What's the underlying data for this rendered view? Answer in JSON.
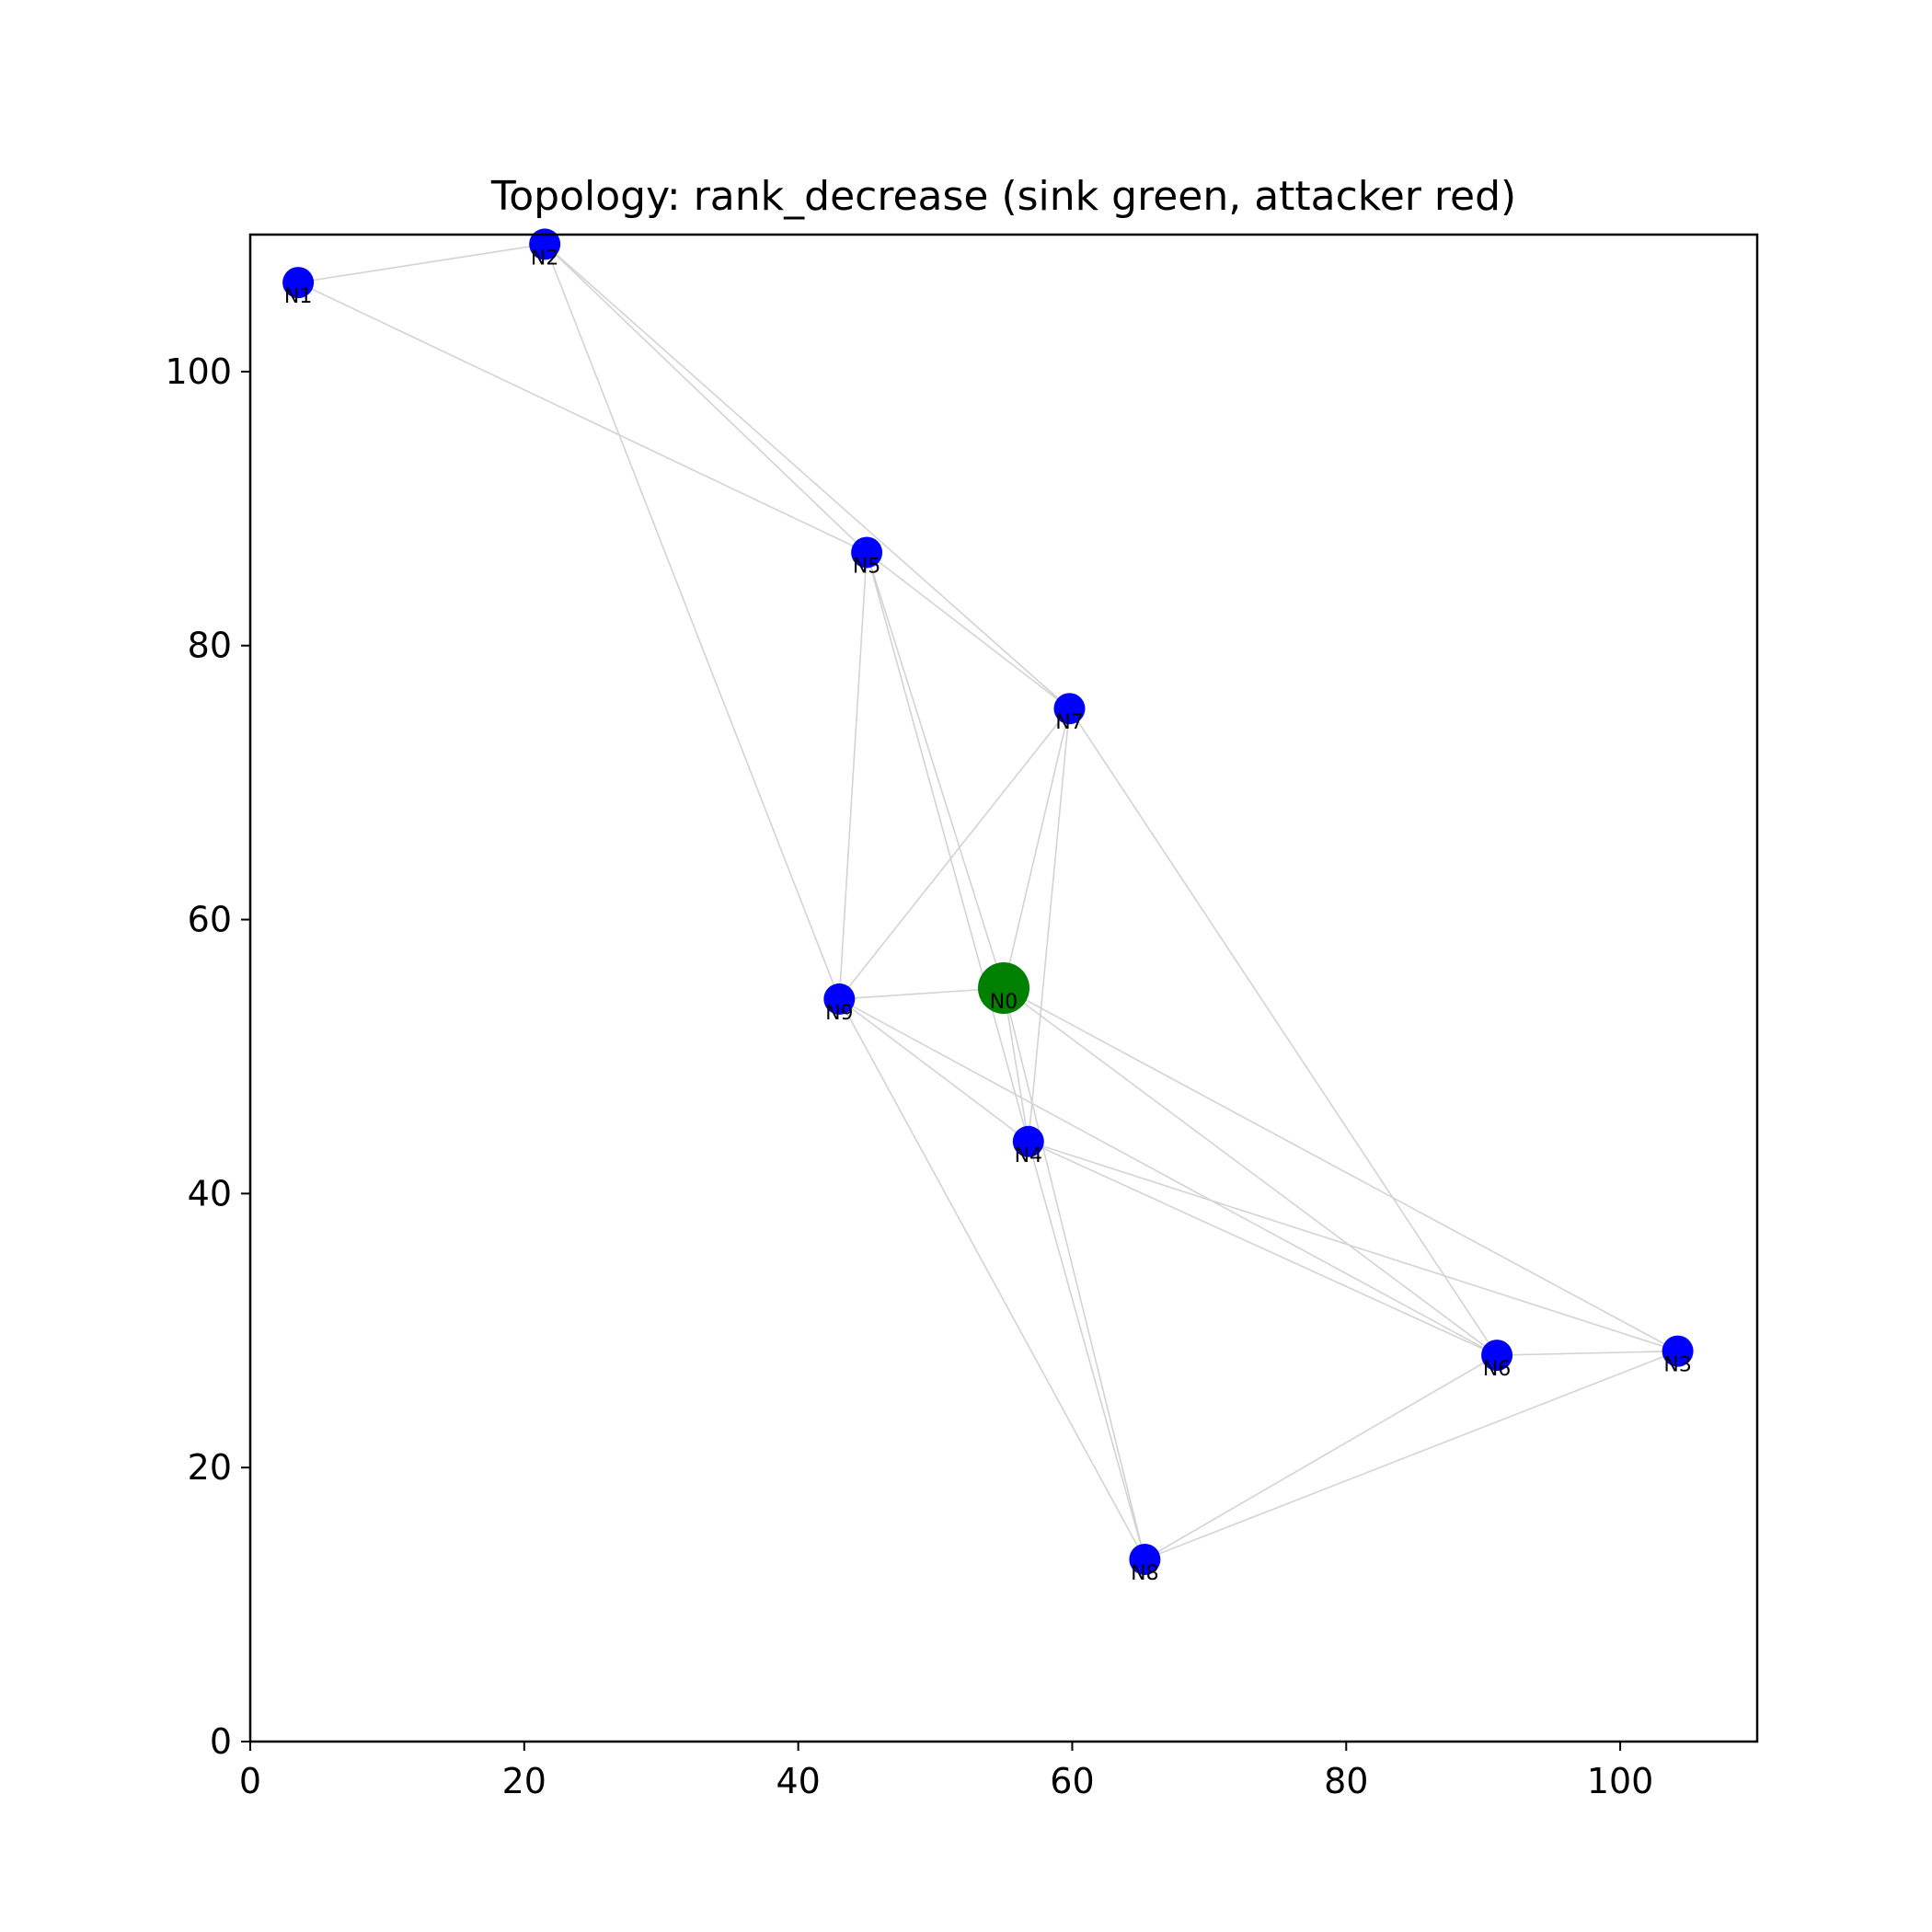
{
  "chart_data": {
    "type": "scatter",
    "title": "Topology: rank_decrease (sink green, attacker red)",
    "xlabel": "",
    "ylabel": "",
    "xlim": [
      0,
      110
    ],
    "ylim": [
      0,
      110
    ],
    "xticks": [
      "0",
      "20",
      "40",
      "60",
      "80",
      "100"
    ],
    "yticks": [
      "0",
      "20",
      "40",
      "60",
      "80",
      "100"
    ],
    "grid": false,
    "colors": {
      "sink": "#008000",
      "node": "#0000ff",
      "edge": "#d3d3d3",
      "axes": "#000000"
    },
    "nodes": [
      {
        "id": "N0",
        "x": 55.0,
        "y": 55.0,
        "role": "sink"
      },
      {
        "id": "N1",
        "x": 3.5,
        "y": 106.5,
        "role": "node"
      },
      {
        "id": "N2",
        "x": 21.5,
        "y": 109.3,
        "role": "node"
      },
      {
        "id": "N3",
        "x": 104.2,
        "y": 28.5,
        "role": "node"
      },
      {
        "id": "N4",
        "x": 56.8,
        "y": 43.8,
        "role": "node"
      },
      {
        "id": "N5",
        "x": 45.0,
        "y": 86.8,
        "role": "node"
      },
      {
        "id": "N6",
        "x": 91.0,
        "y": 28.2,
        "role": "node"
      },
      {
        "id": "N7",
        "x": 59.8,
        "y": 75.4,
        "role": "node"
      },
      {
        "id": "N8",
        "x": 65.3,
        "y": 13.3,
        "role": "node"
      },
      {
        "id": "N9",
        "x": 43.0,
        "y": 54.2,
        "role": "node"
      }
    ],
    "edges": [
      [
        "N1",
        "N2"
      ],
      [
        "N1",
        "N5"
      ],
      [
        "N2",
        "N5"
      ],
      [
        "N2",
        "N7"
      ],
      [
        "N2",
        "N9"
      ],
      [
        "N5",
        "N7"
      ],
      [
        "N5",
        "N9"
      ],
      [
        "N5",
        "N0"
      ],
      [
        "N5",
        "N4"
      ],
      [
        "N7",
        "N9"
      ],
      [
        "N7",
        "N0"
      ],
      [
        "N7",
        "N4"
      ],
      [
        "N7",
        "N6"
      ],
      [
        "N9",
        "N0"
      ],
      [
        "N9",
        "N4"
      ],
      [
        "N9",
        "N6"
      ],
      [
        "N9",
        "N8"
      ],
      [
        "N0",
        "N4"
      ],
      [
        "N0",
        "N3"
      ],
      [
        "N0",
        "N6"
      ],
      [
        "N0",
        "N8"
      ],
      [
        "N4",
        "N3"
      ],
      [
        "N4",
        "N6"
      ],
      [
        "N4",
        "N8"
      ],
      [
        "N6",
        "N3"
      ],
      [
        "N6",
        "N8"
      ],
      [
        "N3",
        "N8"
      ]
    ]
  }
}
